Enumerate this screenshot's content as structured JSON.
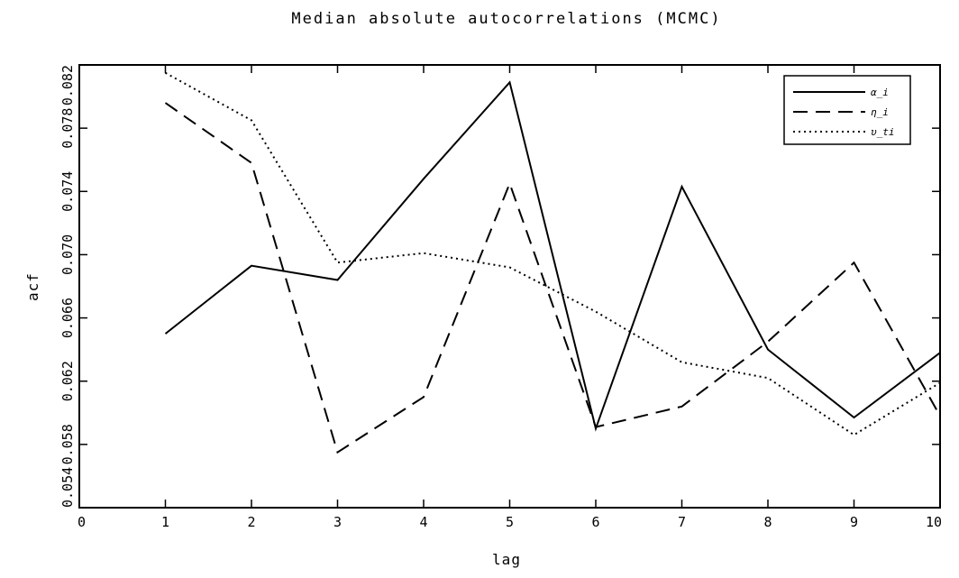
{
  "chart_data": {
    "type": "line",
    "title": "Median absolute autocorrelations (MCMC)",
    "xlabel": "lag",
    "ylabel": "acf",
    "xlim": [
      0,
      10
    ],
    "ylim": [
      0.054,
      0.082
    ],
    "x_ticks": [
      "0",
      "1",
      "2",
      "3",
      "4",
      "5",
      "6",
      "7",
      "8",
      "9",
      "10"
    ],
    "y_ticks": [
      "0.054",
      "0.058",
      "0.062",
      "0.066",
      "0.070",
      "0.074",
      "0.078",
      "0.082"
    ],
    "legend_position": "top-right",
    "grid": false,
    "x": [
      1,
      2,
      3,
      4,
      5,
      6,
      7,
      8,
      9,
      10
    ],
    "series": [
      {
        "name": "α_i",
        "style": "solid",
        "values": [
          0.065,
          0.0693,
          0.0684,
          0.0748,
          0.0809,
          0.059,
          0.0743,
          0.064,
          0.0597,
          0.0638
        ]
      },
      {
        "name": "η_i",
        "style": "dashed",
        "values": [
          0.0796,
          0.0758,
          0.0575,
          0.061,
          0.0745,
          0.0591,
          0.0604,
          0.0645,
          0.0695,
          0.0598
        ]
      },
      {
        "name": "υ_ti",
        "style": "dotted",
        "values": [
          0.0815,
          0.0785,
          0.0695,
          0.0701,
          0.0692,
          0.0664,
          0.0632,
          0.0622,
          0.0586,
          0.0619
        ]
      }
    ],
    "colors": {
      "line": "#000000",
      "background": "#ffffff"
    }
  }
}
